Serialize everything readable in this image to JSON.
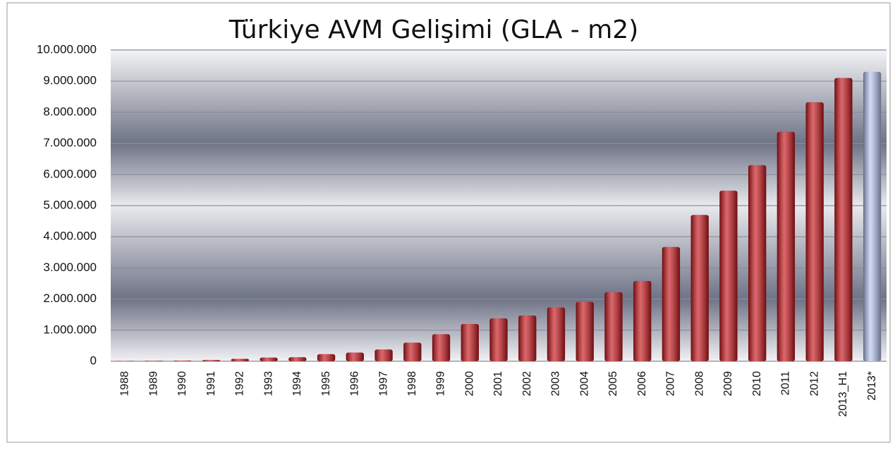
{
  "chart_data": {
    "type": "bar",
    "title": "Türkiye AVM Gelişimi (GLA - m2)",
    "categories": [
      "1988",
      "1989",
      "1990",
      "1991",
      "1992",
      "1993",
      "1994",
      "1995",
      "1996",
      "1997",
      "1998",
      "1999",
      "2000",
      "2001",
      "2002",
      "2003",
      "2004",
      "2005",
      "2006",
      "2007",
      "2008",
      "2009",
      "2010",
      "2011",
      "2012",
      "2013_H1",
      "2013*"
    ],
    "values": [
      10000,
      15000,
      20000,
      40000,
      80000,
      120000,
      130000,
      230000,
      280000,
      380000,
      600000,
      870000,
      1200000,
      1380000,
      1470000,
      1730000,
      1910000,
      2220000,
      2580000,
      3670000,
      4700000,
      5480000,
      6300000,
      7370000,
      8320000,
      9100000,
      9300000
    ],
    "colors": [
      "#c8151b",
      "#c8151b",
      "#c8151b",
      "#c8151b",
      "#c8151b",
      "#c8151b",
      "#c8151b",
      "#c8151b",
      "#c8151b",
      "#c8151b",
      "#c8151b",
      "#c8151b",
      "#c8151b",
      "#c8151b",
      "#c8151b",
      "#c8151b",
      "#c8151b",
      "#c8151b",
      "#c8151b",
      "#c8151b",
      "#c8151b",
      "#c8151b",
      "#c8151b",
      "#c8151b",
      "#c8151b",
      "#c8151b",
      "#b9c6f2"
    ],
    "ylim": [
      0,
      10000000
    ],
    "yticks": [
      {
        "value": 0,
        "label": "0"
      },
      {
        "value": 1000000,
        "label": "1.000.000"
      },
      {
        "value": 2000000,
        "label": "2.000.000"
      },
      {
        "value": 3000000,
        "label": "3.000.000"
      },
      {
        "value": 4000000,
        "label": "4.000.000"
      },
      {
        "value": 5000000,
        "label": "5.000.000"
      },
      {
        "value": 6000000,
        "label": "6.000.000"
      },
      {
        "value": 7000000,
        "label": "7.000.000"
      },
      {
        "value": 8000000,
        "label": "8.000.000"
      },
      {
        "value": 9000000,
        "label": "9.000.000"
      },
      {
        "value": 10000000,
        "label": "10.000.000"
      }
    ],
    "grid": true
  }
}
